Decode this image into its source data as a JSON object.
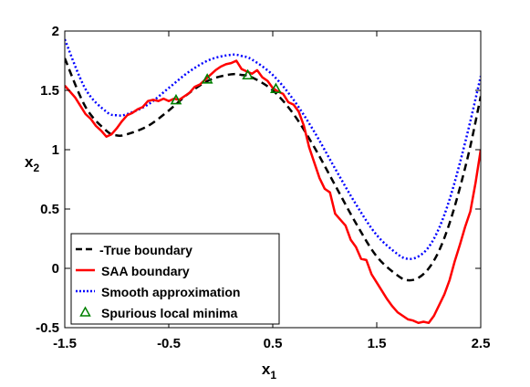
{
  "chart_data": {
    "type": "line",
    "xlabel": "x",
    "xlabel_sub": "1",
    "ylabel": "x",
    "ylabel_sub": "2",
    "xlim": [
      -1.5,
      2.5
    ],
    "ylim": [
      -0.5,
      2
    ],
    "xticks": [
      -1.5,
      -0.5,
      0.5,
      1.5,
      2.5
    ],
    "yticks": [
      -0.5,
      0,
      0.5,
      1,
      1.5,
      2
    ],
    "xtick_labels": [
      "-1.5",
      "-0.5",
      "0.5",
      "1.5",
      "2.5"
    ],
    "ytick_labels": [
      "-0.5",
      "0",
      "0.5",
      "1",
      "1.5",
      "2"
    ],
    "grid": false,
    "legend_position": "bottom-left",
    "legend_first_label_prefix": "-",
    "series": [
      {
        "name": "True boundary",
        "color": "#000000",
        "style": "dashed",
        "x": [
          -1.5,
          -1.3,
          -1.1,
          -1.0,
          -0.9,
          -0.7,
          -0.5,
          -0.3,
          -0.1,
          0.1,
          0.2,
          0.3,
          0.5,
          0.7,
          0.9,
          1.1,
          1.3,
          1.5,
          1.7,
          1.8,
          1.9,
          2.0,
          2.1,
          2.2,
          2.3,
          2.4,
          2.5
        ],
        "y": [
          1.77,
          1.36,
          1.16,
          1.12,
          1.13,
          1.2,
          1.33,
          1.48,
          1.59,
          1.635,
          1.63,
          1.61,
          1.5,
          1.3,
          1.02,
          0.7,
          0.38,
          0.1,
          -0.06,
          -0.1,
          -0.08,
          0.0,
          0.15,
          0.38,
          0.68,
          1.03,
          1.45
        ]
      },
      {
        "name": "SAA boundary",
        "color": "#ff0000",
        "style": "solid",
        "x": [
          -1.5,
          -1.4,
          -1.3,
          -1.25,
          -1.2,
          -1.15,
          -1.1,
          -1.05,
          -1.0,
          -0.95,
          -0.9,
          -0.85,
          -0.8,
          -0.75,
          -0.7,
          -0.65,
          -0.6,
          -0.55,
          -0.5,
          -0.45,
          -0.4,
          -0.35,
          -0.3,
          -0.25,
          -0.2,
          -0.15,
          -0.1,
          -0.05,
          0.0,
          0.05,
          0.1,
          0.15,
          0.2,
          0.25,
          0.3,
          0.35,
          0.4,
          0.45,
          0.5,
          0.55,
          0.6,
          0.65,
          0.7,
          0.75,
          0.8,
          0.85,
          0.9,
          0.95,
          1.0,
          1.05,
          1.1,
          1.15,
          1.2,
          1.25,
          1.3,
          1.35,
          1.4,
          1.45,
          1.5,
          1.55,
          1.6,
          1.65,
          1.7,
          1.75,
          1.8,
          1.85,
          1.9,
          1.95,
          2.0,
          2.05,
          2.1,
          2.15,
          2.2,
          2.25,
          2.3,
          2.35,
          2.4,
          2.45,
          2.5
        ],
        "y": [
          1.54,
          1.44,
          1.3,
          1.26,
          1.2,
          1.16,
          1.11,
          1.13,
          1.18,
          1.24,
          1.29,
          1.31,
          1.34,
          1.36,
          1.41,
          1.42,
          1.41,
          1.43,
          1.41,
          1.43,
          1.42,
          1.45,
          1.48,
          1.53,
          1.55,
          1.59,
          1.63,
          1.67,
          1.7,
          1.72,
          1.73,
          1.75,
          1.68,
          1.66,
          1.64,
          1.67,
          1.61,
          1.58,
          1.52,
          1.49,
          1.47,
          1.4,
          1.38,
          1.32,
          1.2,
          1.02,
          0.89,
          0.76,
          0.67,
          0.64,
          0.46,
          0.41,
          0.36,
          0.24,
          0.18,
          0.08,
          0.07,
          -0.05,
          -0.12,
          -0.19,
          -0.26,
          -0.32,
          -0.37,
          -0.4,
          -0.43,
          -0.44,
          -0.46,
          -0.45,
          -0.46,
          -0.4,
          -0.31,
          -0.22,
          -0.1,
          0.06,
          0.2,
          0.35,
          0.48,
          0.72,
          1.0
        ]
      },
      {
        "name": "Smooth approximation",
        "color": "#0000ff",
        "style": "dotted",
        "x": [
          -1.5,
          -1.3,
          -1.1,
          -1.0,
          -0.9,
          -0.7,
          -0.5,
          -0.3,
          -0.1,
          0.1,
          0.2,
          0.3,
          0.5,
          0.7,
          0.9,
          1.1,
          1.3,
          1.5,
          1.7,
          1.8,
          1.9,
          2.0,
          2.1,
          2.2,
          2.3,
          2.4,
          2.5
        ],
        "y": [
          1.93,
          1.51,
          1.32,
          1.29,
          1.3,
          1.38,
          1.52,
          1.66,
          1.76,
          1.8,
          1.79,
          1.76,
          1.63,
          1.42,
          1.15,
          0.84,
          0.54,
          0.28,
          0.12,
          0.08,
          0.1,
          0.18,
          0.34,
          0.58,
          0.89,
          1.24,
          1.62
        ]
      },
      {
        "name": "Spurious local minima",
        "color": "#008000",
        "style": "marker-triangle",
        "x": [
          -0.43,
          -0.13,
          0.26,
          0.53
        ],
        "y": [
          1.415,
          1.59,
          1.625,
          1.51
        ]
      }
    ]
  }
}
